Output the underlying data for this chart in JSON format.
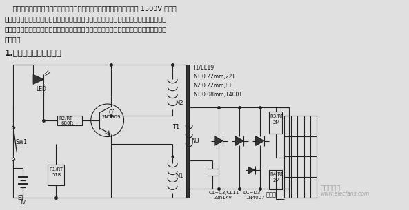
{
  "bg_color": "#e8e8e8",
  "text_color": "#111111",
  "title_text": "1.常用的一种电蚊拍电路",
  "para_line1": "    电蚊拍是一种家用的小电子产品，利用直流升压电路将电池电压提升到 1500V 左右的",
  "para_line2": "直流高压来击毼蚊蟆。电蚊拍克服了蚊香、喷雾剂等传统驱蚊方法对人体健康的不利影响，",
  "para_line3": "具有无味、无毒、无害等特点，以其经济实用、简便有效、无化学污染等优点受到人们的普",
  "para_line4": "遍欢迎。",
  "T1_spec": "T1/EE19\nN1:0.22mm,22T\nN2:0.22mm,8T\nN1:0.08mm,1400T",
  "watermark_text": "电子发烧友",
  "watermark_url": "www.elecfans.com"
}
